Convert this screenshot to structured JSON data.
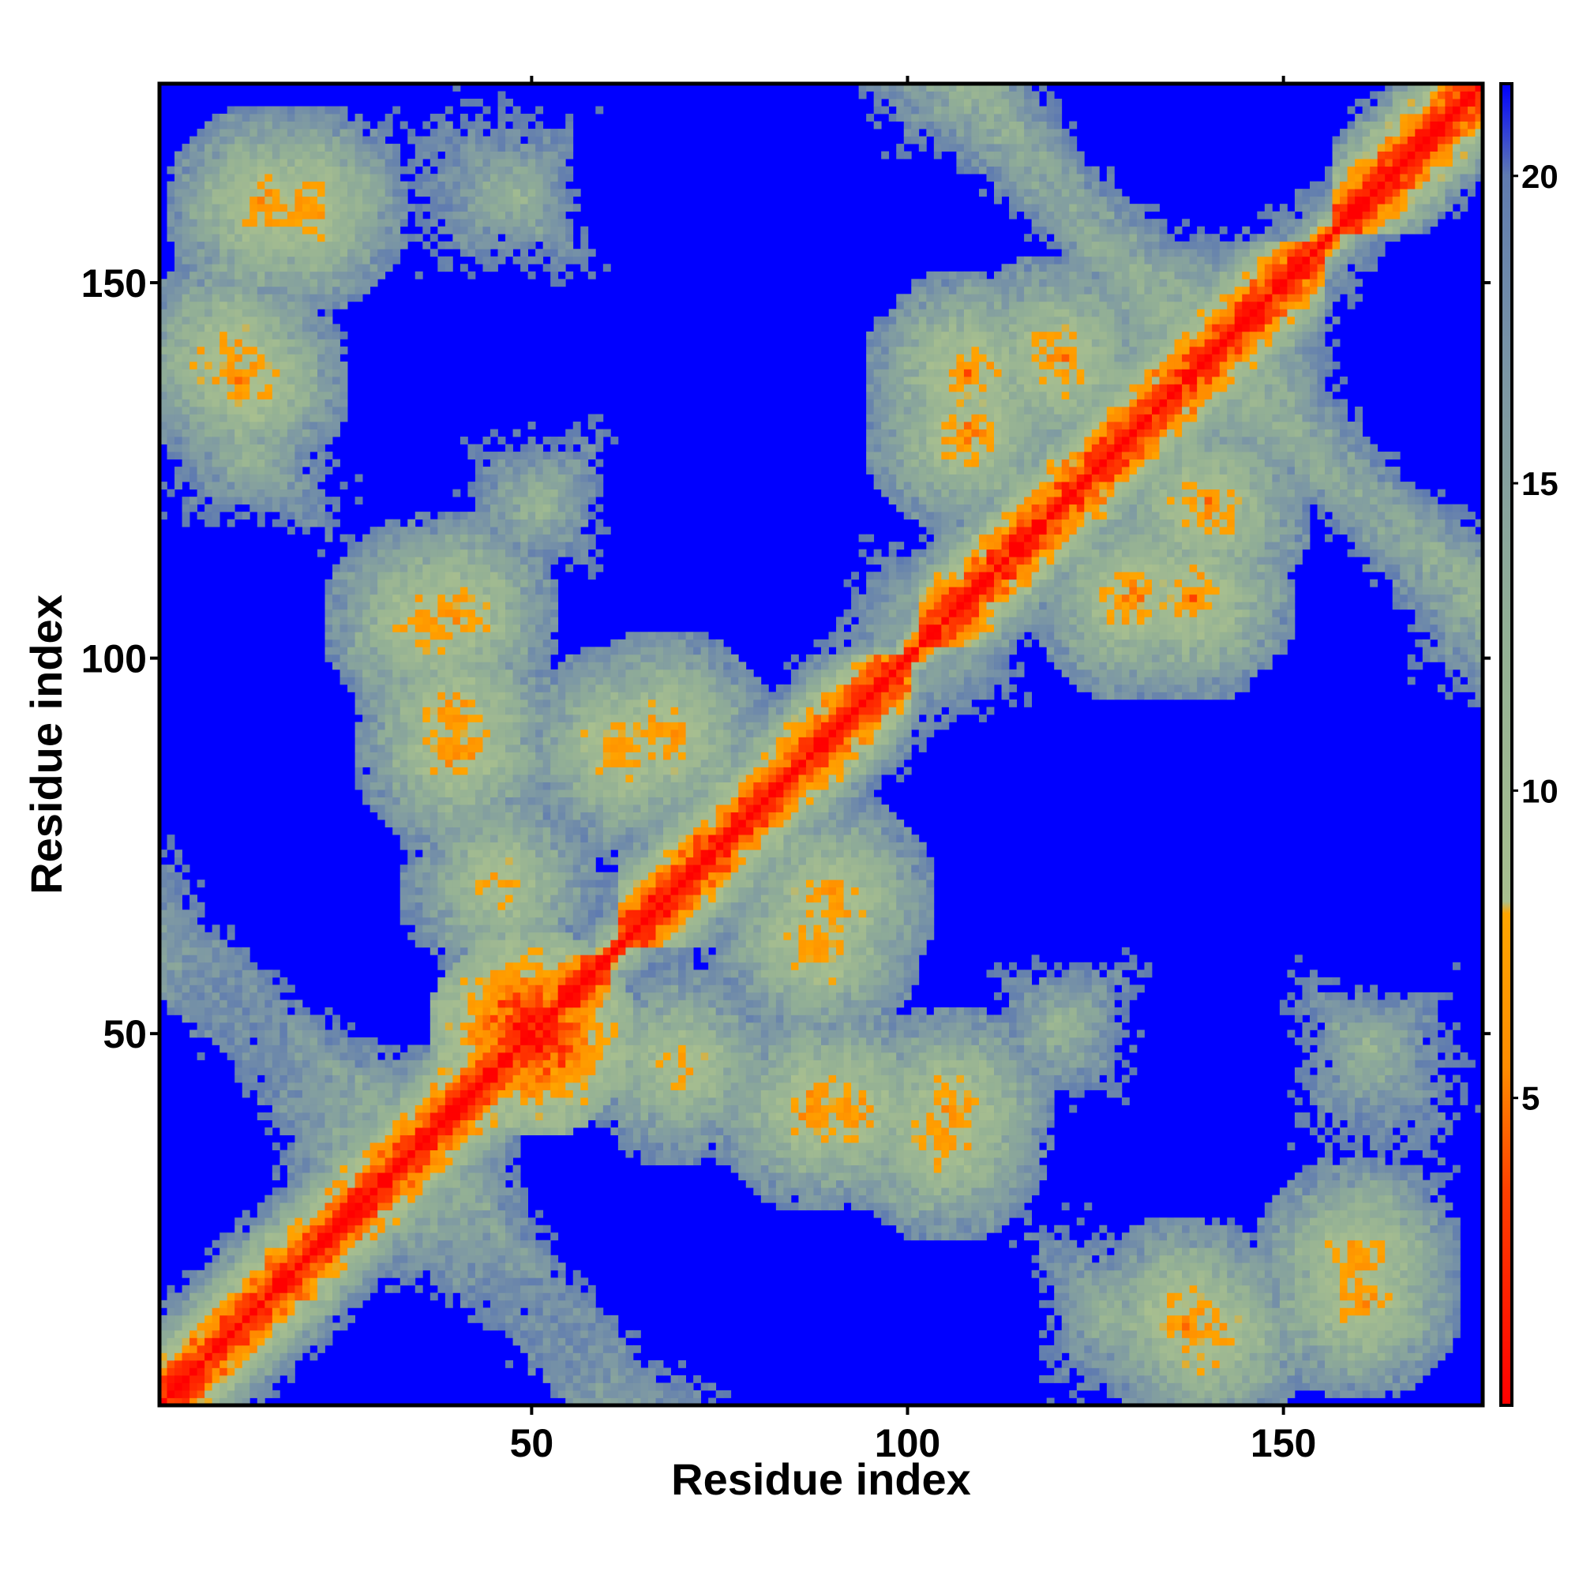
{
  "chart_data": {
    "type": "heatmap",
    "title": "",
    "xlabel": "Residue index",
    "ylabel": "Residue index",
    "xlim": [
      1,
      176
    ],
    "ylim": [
      1,
      176
    ],
    "x_ticks": [
      50,
      100,
      150
    ],
    "y_ticks": [
      50,
      100,
      150
    ],
    "grid": false,
    "legend": "colorbar-right",
    "colorbar": {
      "range": [
        0,
        21.5
      ],
      "ticks": [
        5,
        10,
        15,
        20
      ],
      "stops": [
        {
          "value": 0,
          "color": "#ff0000"
        },
        {
          "value": 3.5,
          "color": "#ff4000"
        },
        {
          "value": 5.5,
          "color": "#ff8c00"
        },
        {
          "value": 8.0,
          "color": "#ffa500"
        },
        {
          "value": 8.2,
          "color": "#a8bf8f"
        },
        {
          "value": 12.5,
          "color": "#93b095"
        },
        {
          "value": 16.5,
          "color": "#7d98a4"
        },
        {
          "value": 20.0,
          "color": "#5f7bb0"
        },
        {
          "value": 21.5,
          "color": "#0000ff"
        }
      ],
      "over_color": "#0000ff"
    },
    "n_residues": 176,
    "matrix_description_values": {
      "diagonal": 0,
      "cutoff": 20,
      "helices": [
        [
          1,
          60
        ],
        [
          62,
          100
        ],
        [
          102,
          155
        ],
        [
          157,
          176
        ]
      ],
      "contacts": [
        {
          "i": 20,
          "j": 160,
          "d": 6
        },
        {
          "i": 10,
          "j": 140,
          "d": 6
        },
        {
          "i": 36,
          "j": 105,
          "d": 6
        },
        {
          "i": 40,
          "j": 88,
          "d": 6
        },
        {
          "i": 62,
          "j": 88,
          "d": 6
        },
        {
          "i": 90,
          "j": 68,
          "d": 6
        },
        {
          "i": 92,
          "j": 40,
          "d": 6
        },
        {
          "i": 106,
          "j": 40,
          "d": 6
        },
        {
          "i": 108,
          "j": 138,
          "d": 6
        },
        {
          "i": 137,
          "j": 12,
          "d": 6
        },
        {
          "i": 160,
          "j": 15,
          "d": 6
        },
        {
          "i": 130,
          "j": 108,
          "d": 6
        },
        {
          "i": 140,
          "j": 120,
          "d": 6
        },
        {
          "i": 46,
          "j": 70,
          "d": 7
        },
        {
          "i": 50,
          "j": 50,
          "d": 0
        }
      ]
    }
  }
}
